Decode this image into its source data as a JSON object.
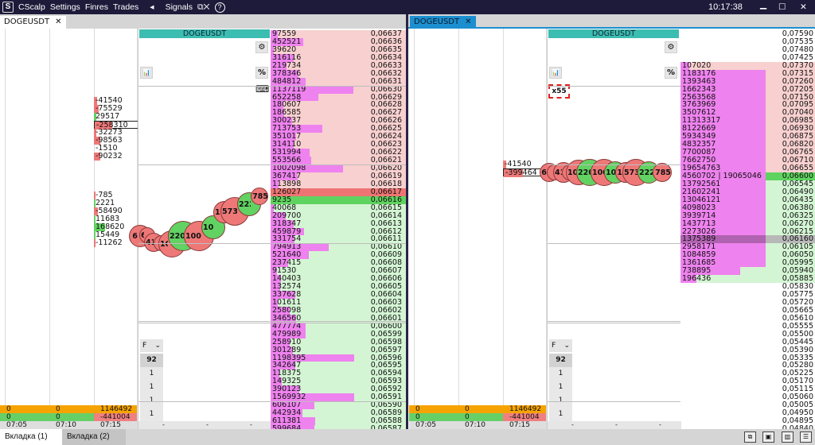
{
  "titlebar": {
    "logo": "S",
    "app": "CScalp",
    "menu": [
      "Settings",
      "Finres",
      "Trades"
    ],
    "sound": "◂",
    "signals": "Signals",
    "detach": "⧉✕",
    "help": "?",
    "clock": "10:17:38",
    "minimize": "▁",
    "maximize": "☐",
    "close": "✕"
  },
  "tabs": {
    "left": {
      "label": "DOGEUSDT",
      "close": "✕"
    },
    "right": {
      "label": "DOGEUSDT",
      "close": "✕"
    }
  },
  "colors": {
    "ask_bg": "#f8d0d0",
    "bid_bg": "#d4f5d4",
    "best_ask": "#ee7474",
    "best_bid": "#5fd35f",
    "volume_bar": "#ee82ee",
    "header": "#3cbdb1",
    "accent_tab": "#1b8fd0",
    "buy_bubble": "#62d262",
    "sell_bubble": "#ee7878"
  },
  "left": {
    "symbol": "DOGEUSDT",
    "buttons": {
      "gear": "⚙",
      "chart": "📊",
      "percent": "%",
      "keyboard": "⌨"
    },
    "clusters": [
      {
        "v": "-41540",
        "side": "sell"
      },
      {
        "v": "-75529",
        "side": "sell"
      },
      {
        "v": "29517",
        "side": "buy"
      },
      {
        "v": "-258310",
        "side": "sell",
        "boxed": true
      },
      {
        "v": "-32273",
        "side": "sell"
      },
      {
        "v": "-98563",
        "side": "sell"
      },
      {
        "v": "-1510",
        "side": "none"
      },
      {
        "v": "-90232",
        "side": "sell"
      },
      {
        "v": "-785",
        "side": "sell",
        "gap": true
      },
      {
        "v": "2221",
        "side": "buy"
      },
      {
        "v": "-58490",
        "side": "sell"
      },
      {
        "v": "11683",
        "side": "buy"
      },
      {
        "v": "168620",
        "side": "buy"
      },
      {
        "v": "15449",
        "side": "buy"
      },
      {
        "v": "-11262",
        "side": "sell"
      }
    ],
    "trades": [
      {
        "label": "6",
        "side": "sell"
      },
      {
        "label": "67",
        "side": "sell"
      },
      {
        "label": "41",
        "side": "sell"
      },
      {
        "label": "",
        "side": "sell"
      },
      {
        "label": "106",
        "side": "sell"
      },
      {
        "label": "220",
        "side": "buy"
      },
      {
        "label": "1000",
        "side": "sell"
      },
      {
        "label": "1029",
        "side": "buy"
      },
      {
        "label": "15",
        "side": "sell"
      },
      {
        "label": "5736",
        "side": "sell"
      },
      {
        "label": "2221",
        "side": "buy"
      },
      {
        "label": "785",
        "side": "sell"
      }
    ],
    "book": [
      [
        "97559",
        "0,06637",
        "a"
      ],
      [
        "452521",
        "0,06636",
        "a"
      ],
      [
        "39620",
        "0,06635",
        "a"
      ],
      [
        "316116",
        "0,06634",
        "a"
      ],
      [
        "219734",
        "0,06633",
        "a"
      ],
      [
        "378346",
        "0,06632",
        "a"
      ],
      [
        "484812",
        "0,06631",
        "a"
      ],
      [
        "1137119",
        "0,06630",
        "a"
      ],
      [
        "652258",
        "0,06629",
        "a"
      ],
      [
        "180607",
        "0,06628",
        "a"
      ],
      [
        "186585",
        "0,06627",
        "a"
      ],
      [
        "300237",
        "0,06626",
        "a"
      ],
      [
        "713753",
        "0,06625",
        "a"
      ],
      [
        "351017",
        "0,06624",
        "a"
      ],
      [
        "314110",
        "0,06623",
        "a"
      ],
      [
        "531994",
        "0,06622",
        "a"
      ],
      [
        "553566",
        "0,06621",
        "a"
      ],
      [
        "1002098",
        "0,06620",
        "a"
      ],
      [
        "367417",
        "0,06619",
        "a"
      ],
      [
        "113898",
        "0,06618",
        "a"
      ],
      [
        "126027",
        "0,06617",
        "ba"
      ],
      [
        "9235",
        "0,06616",
        "bb"
      ],
      [
        "40068",
        "0,06615",
        "b"
      ],
      [
        "209700",
        "0,06614",
        "b"
      ],
      [
        "318347",
        "0,06613",
        "b"
      ],
      [
        "459879",
        "0,06612",
        "b"
      ],
      [
        "331754",
        "0,06611",
        "b"
      ],
      [
        "794913",
        "0,06610",
        "b"
      ],
      [
        "521640",
        "0,06609",
        "b"
      ],
      [
        "237415",
        "0,06608",
        "b"
      ],
      [
        "91530",
        "0,06607",
        "b"
      ],
      [
        "140403",
        "0,06606",
        "b"
      ],
      [
        "132574",
        "0,06605",
        "b"
      ],
      [
        "337628",
        "0,06604",
        "b"
      ],
      [
        "101611",
        "0,06603",
        "b"
      ],
      [
        "258098",
        "0,06602",
        "b"
      ],
      [
        "346560",
        "0,06601",
        "b"
      ],
      [
        "477774",
        "0,06600",
        "b"
      ],
      [
        "479989",
        "0,06599",
        "b"
      ],
      [
        "258910",
        "0,06598",
        "b"
      ],
      [
        "301289",
        "0,06597",
        "b"
      ],
      [
        "1198395",
        "0,06596",
        "b"
      ],
      [
        "342647",
        "0,06595",
        "b"
      ],
      [
        "118375",
        "0,06594",
        "b"
      ],
      [
        "149325",
        "0,06593",
        "b"
      ],
      [
        "390123",
        "0,06592",
        "b"
      ],
      [
        "1569932",
        "0,06591",
        "b"
      ],
      [
        "606107",
        "0,06590",
        "b"
      ],
      [
        "442934",
        "0,06589",
        "b"
      ],
      [
        "611381",
        "0,06588",
        "b"
      ],
      [
        "599684",
        "0,06587",
        "b"
      ]
    ],
    "filter": "F",
    "filter_caret": "⌄",
    "counts": [
      "92",
      "1",
      "1",
      "1",
      "1"
    ],
    "totals": {
      "row1": [
        "0",
        "0",
        "1146492"
      ],
      "row2": [
        "0",
        "0",
        "-441004"
      ],
      "times": [
        "07:05",
        "07:10",
        "07:15"
      ]
    },
    "chart_footer": [
      "-",
      "-",
      "-"
    ]
  },
  "right": {
    "symbol": "DOGEUSDT",
    "buttons": {
      "gear": "⚙",
      "chart": "📊",
      "percent": "%"
    },
    "multiplier": "x55",
    "clusters": [
      {
        "v": "-41540",
        "side": "sell"
      },
      {
        "v": "-399464",
        "side": "sell",
        "boxed": true
      }
    ],
    "trades": [
      {
        "label": "6",
        "side": "sell"
      },
      {
        "label": "",
        "side": "sell"
      },
      {
        "label": "41",
        "side": "sell"
      },
      {
        "label": "",
        "side": "sell"
      },
      {
        "label": "106",
        "side": "sell"
      },
      {
        "label": "220",
        "side": "buy"
      },
      {
        "label": "100",
        "side": "sell"
      },
      {
        "label": "10",
        "side": "buy"
      },
      {
        "label": "1",
        "side": "sell"
      },
      {
        "label": "573",
        "side": "sell"
      },
      {
        "label": "222",
        "side": "buy"
      },
      {
        "label": "785",
        "side": "sell"
      }
    ],
    "book": [
      [
        "",
        "0,07590",
        "n"
      ],
      [
        "",
        "0,07535",
        "n"
      ],
      [
        "",
        "0,07480",
        "n"
      ],
      [
        "",
        "0,07425",
        "n"
      ],
      [
        "107020",
        "0,07370",
        "a"
      ],
      [
        "1183176",
        "0,07315",
        "a"
      ],
      [
        "1393463",
        "0,07260",
        "a"
      ],
      [
        "1662343",
        "0,07205",
        "a"
      ],
      [
        "2563568",
        "0,07150",
        "a"
      ],
      [
        "3763969",
        "0,07095",
        "a"
      ],
      [
        "3507612",
        "0,07040",
        "a"
      ],
      [
        "11313317",
        "0,06985",
        "a"
      ],
      [
        "8122669",
        "0,06930",
        "a"
      ],
      [
        "5934349",
        "0,06875",
        "a"
      ],
      [
        "4832357",
        "0,06820",
        "a"
      ],
      [
        "7700087",
        "0,06765",
        "a"
      ],
      [
        "7662750",
        "0,06710",
        "a"
      ],
      [
        "19654763",
        "0,06655",
        "a"
      ],
      [
        "4560702 | 19065046",
        "0,06600",
        "bb"
      ],
      [
        "13792561",
        "0,06545",
        "b"
      ],
      [
        "21602241",
        "0,06490",
        "b"
      ],
      [
        "13046121",
        "0,06435",
        "b"
      ],
      [
        "4098023",
        "0,06380",
        "b"
      ],
      [
        "3939714",
        "0,06325",
        "b"
      ],
      [
        "1437713",
        "0,06270",
        "b"
      ],
      [
        "2273026",
        "0,06215",
        "b"
      ],
      [
        "1375389",
        "0,06160",
        "g"
      ],
      [
        "2958171",
        "0,06105",
        "b"
      ],
      [
        "1084859",
        "0,06050",
        "b"
      ],
      [
        "1361685",
        "0,05995",
        "b"
      ],
      [
        "738895",
        "0,05940",
        "b"
      ],
      [
        "196436",
        "0,05885",
        "b"
      ],
      [
        "",
        "0,05830",
        "n"
      ],
      [
        "",
        "0,05775",
        "n"
      ],
      [
        "",
        "0,05720",
        "n"
      ],
      [
        "",
        "0,05665",
        "n"
      ],
      [
        "",
        "0,05610",
        "n"
      ],
      [
        "",
        "0,05555",
        "n"
      ],
      [
        "",
        "0,05500",
        "n"
      ],
      [
        "",
        "0,05445",
        "n"
      ],
      [
        "",
        "0,05390",
        "n"
      ],
      [
        "",
        "0,05335",
        "n"
      ],
      [
        "",
        "0,05280",
        "n"
      ],
      [
        "",
        "0,05225",
        "n"
      ],
      [
        "",
        "0,05170",
        "n"
      ],
      [
        "",
        "0,05115",
        "n"
      ],
      [
        "",
        "0,05060",
        "n"
      ],
      [
        "",
        "0,05005",
        "n"
      ],
      [
        "",
        "0,04950",
        "n"
      ],
      [
        "",
        "0,04895",
        "n"
      ],
      [
        "",
        "0,04840",
        "n"
      ]
    ],
    "filter": "F",
    "filter_caret": "⌄",
    "counts": [
      "92",
      "1",
      "1",
      "1",
      "1"
    ],
    "totals": {
      "row1": [
        "0",
        "0",
        "1146492"
      ],
      "row2": [
        "0",
        "0",
        "-441004"
      ],
      "times": [
        "07:05",
        "07:10",
        "07:15"
      ]
    },
    "chart_footer": [
      "-",
      "-",
      "-"
    ]
  },
  "bottom": {
    "tabs": [
      "Вкладка (1)",
      "Вкладка (2)"
    ],
    "icons": [
      "new-window-icon",
      "add-panel-icon",
      "add-chart-icon",
      "add-list-icon"
    ],
    "icon_glyphs": [
      "⧉",
      "▣",
      "▥",
      "☰"
    ]
  }
}
